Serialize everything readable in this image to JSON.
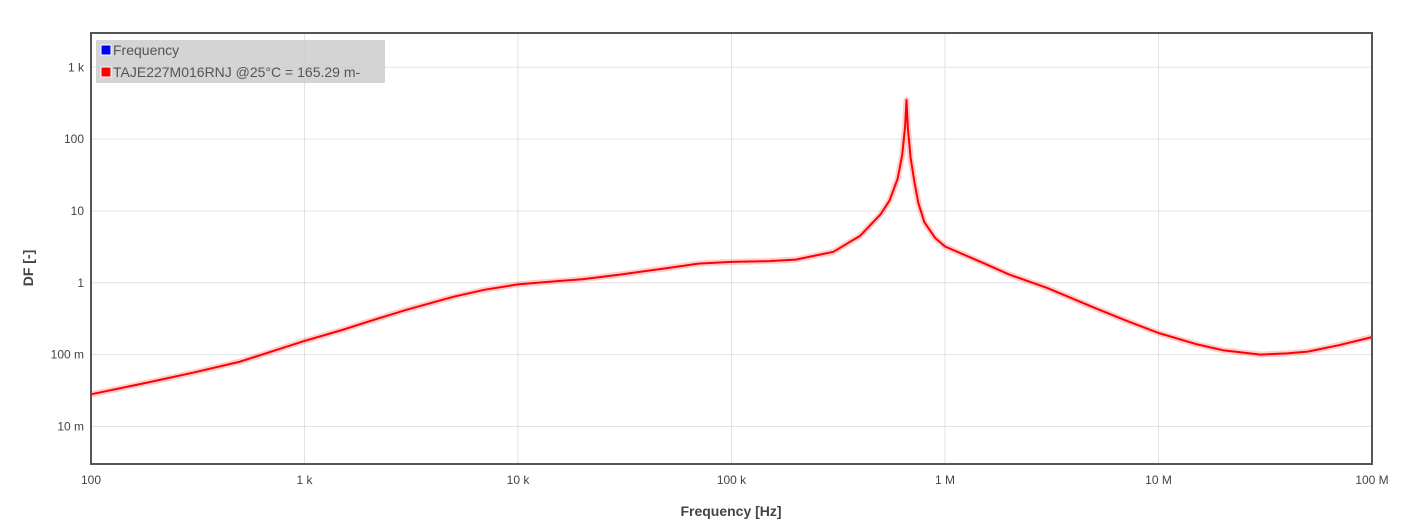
{
  "chart_data": {
    "type": "line",
    "title": "",
    "xlabel": "Frequency [Hz]",
    "ylabel": "DF [-]",
    "x_scale": "log",
    "y_scale": "log",
    "xlim": [
      100,
      100000000
    ],
    "ylim": [
      0.003,
      3000
    ],
    "x_ticks": [
      {
        "value": 100,
        "label": "100"
      },
      {
        "value": 1000,
        "label": "1 k"
      },
      {
        "value": 10000,
        "label": "10 k"
      },
      {
        "value": 100000,
        "label": "100 k"
      },
      {
        "value": 1000000,
        "label": "1 M"
      },
      {
        "value": 10000000,
        "label": "10 M"
      },
      {
        "value": 100000000,
        "label": "100 M"
      }
    ],
    "y_ticks": [
      {
        "value": 0.01,
        "label": "10 m"
      },
      {
        "value": 0.1,
        "label": "100 m"
      },
      {
        "value": 1,
        "label": "1"
      },
      {
        "value": 10,
        "label": "10"
      },
      {
        "value": 100,
        "label": "100"
      },
      {
        "value": 1000,
        "label": "1 k"
      }
    ],
    "grid": true,
    "legend_position": "top-left",
    "legend": [
      {
        "label": "Frequency",
        "color": "#0000ff"
      },
      {
        "label": "TAJE227M016RNJ @25°C = 165.29 m-",
        "color": "#ff0000"
      }
    ],
    "series": [
      {
        "name": "TAJE227M016RNJ @25°C = 165.29 m-",
        "color": "#ff0000",
        "points": [
          [
            100,
            0.028
          ],
          [
            150,
            0.036
          ],
          [
            200,
            0.043
          ],
          [
            300,
            0.056
          ],
          [
            500,
            0.08
          ],
          [
            700,
            0.11
          ],
          [
            1000,
            0.155
          ],
          [
            1500,
            0.22
          ],
          [
            2000,
            0.29
          ],
          [
            3000,
            0.42
          ],
          [
            5000,
            0.64
          ],
          [
            7000,
            0.8
          ],
          [
            10000,
            0.95
          ],
          [
            15000,
            1.05
          ],
          [
            20000,
            1.12
          ],
          [
            30000,
            1.3
          ],
          [
            50000,
            1.6
          ],
          [
            70000,
            1.85
          ],
          [
            100000,
            1.95
          ],
          [
            150000,
            2.0
          ],
          [
            200000,
            2.1
          ],
          [
            300000,
            2.7
          ],
          [
            400000,
            4.5
          ],
          [
            500000,
            9
          ],
          [
            550000,
            14
          ],
          [
            600000,
            28
          ],
          [
            630000,
            60
          ],
          [
            650000,
            150
          ],
          [
            660000,
            350
          ],
          [
            670000,
            140
          ],
          [
            690000,
            55
          ],
          [
            720000,
            25
          ],
          [
            750000,
            13
          ],
          [
            800000,
            7
          ],
          [
            900000,
            4.2
          ],
          [
            1000000,
            3.2
          ],
          [
            1500000,
            1.9
          ],
          [
            2000000,
            1.3
          ],
          [
            3000000,
            0.85
          ],
          [
            5000000,
            0.45
          ],
          [
            7000000,
            0.3
          ],
          [
            10000000,
            0.2
          ],
          [
            15000000,
            0.14
          ],
          [
            20000000,
            0.115
          ],
          [
            30000000,
            0.1
          ],
          [
            40000000,
            0.104
          ],
          [
            50000000,
            0.11
          ],
          [
            70000000,
            0.135
          ],
          [
            100000000,
            0.175
          ]
        ]
      }
    ]
  }
}
